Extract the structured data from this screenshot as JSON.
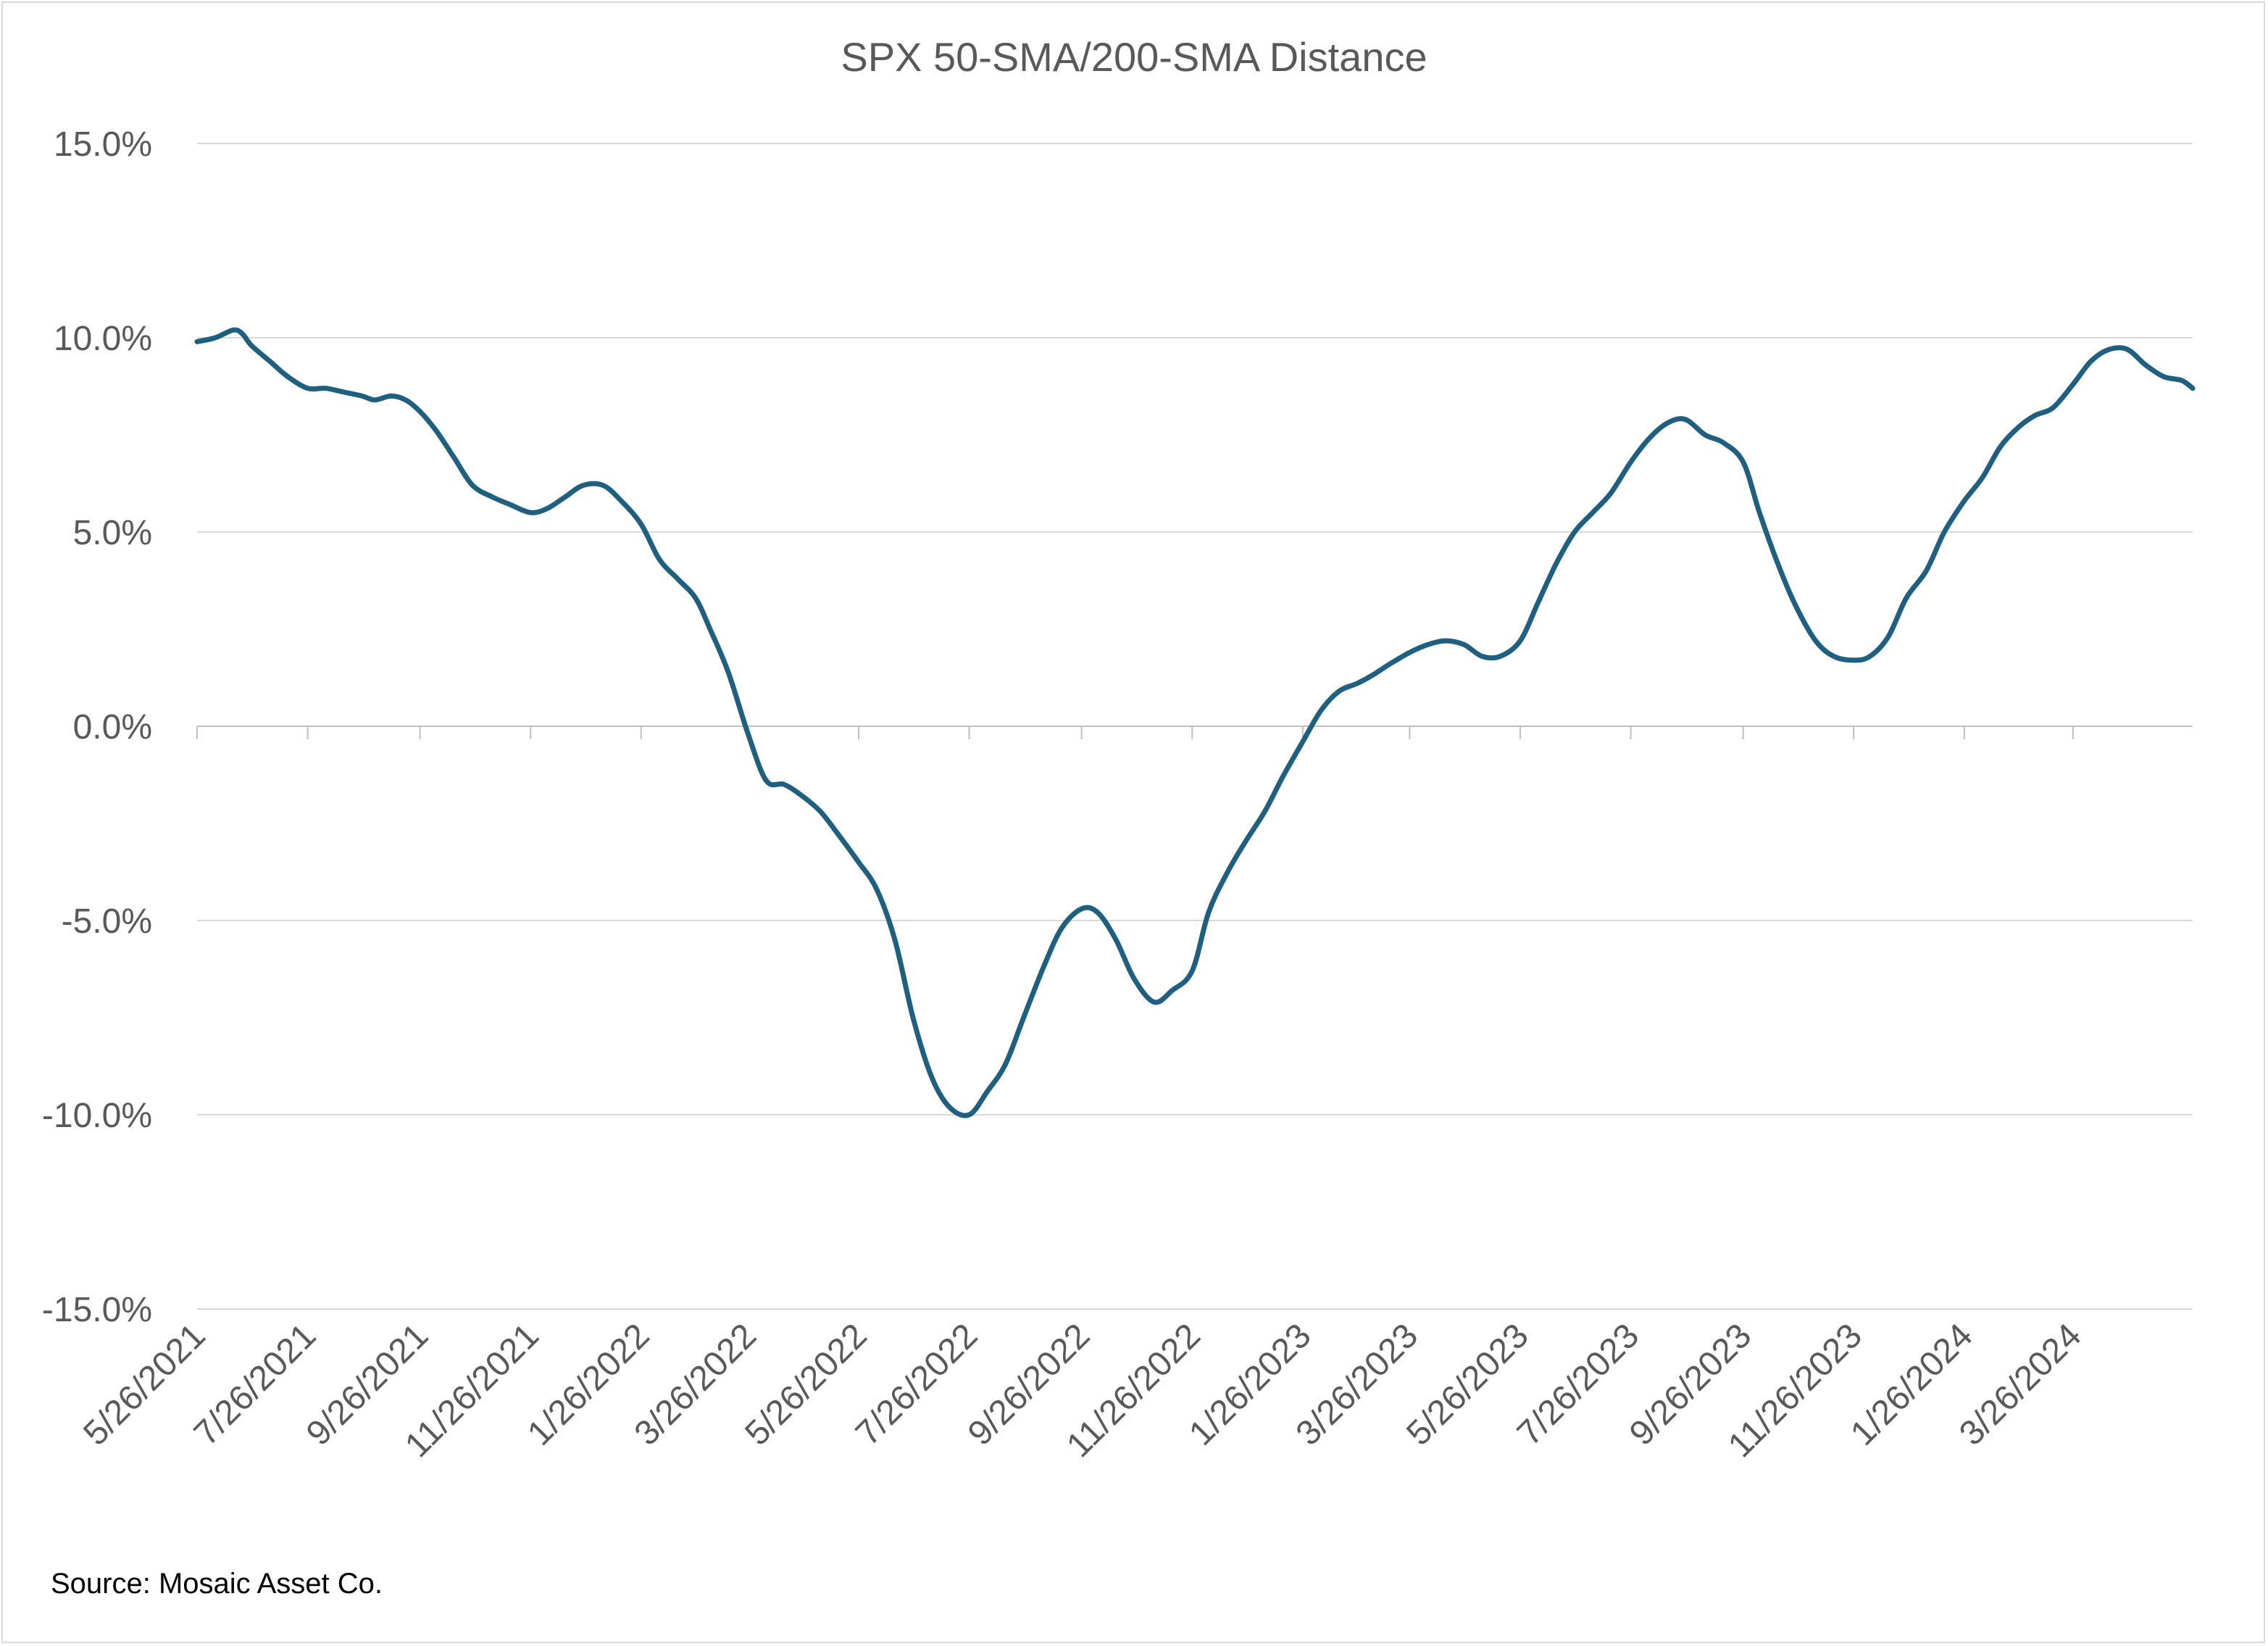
{
  "chart_data": {
    "type": "line",
    "title": "SPX 50-SMA/200-SMA Distance",
    "xlabel": "",
    "ylabel": "",
    "ylim": [
      -0.15,
      0.15
    ],
    "xlim": [
      "2021-05-26",
      "2024-05-31"
    ],
    "y_ticks": [
      0.15,
      0.1,
      0.05,
      0.0,
      -0.05,
      -0.1,
      -0.15
    ],
    "y_tick_labels": [
      "15.0%",
      "10.0%",
      "5.0%",
      "0.0%",
      "-5.0%",
      "-10.0%",
      "-15.0%"
    ],
    "x_tick_dates": [
      "2021-05-26",
      "2021-07-26",
      "2021-09-26",
      "2021-11-26",
      "2022-01-26",
      "2022-03-26",
      "2022-05-26",
      "2022-07-26",
      "2022-09-26",
      "2022-11-26",
      "2023-01-26",
      "2023-03-26",
      "2023-05-26",
      "2023-07-26",
      "2023-09-26",
      "2023-11-26",
      "2024-01-26",
      "2024-03-26"
    ],
    "x_tick_labels": [
      "5/26/2021",
      "7/26/2021",
      "9/26/2021",
      "11/26/2021",
      "1/26/2022",
      "3/26/2022",
      "5/26/2022",
      "7/26/2022",
      "9/26/2022",
      "11/26/2022",
      "1/26/2023",
      "3/26/2023",
      "5/26/2023",
      "7/26/2023",
      "9/26/2023",
      "11/26/2023",
      "1/26/2024",
      "3/26/2024"
    ],
    "grid": true,
    "legend": "none",
    "series_color": "#1f5f7f",
    "series": [
      {
        "x": [
          "2021-05-26",
          "2021-06-05",
          "2021-06-15",
          "2021-06-20",
          "2021-06-25",
          "2021-07-05",
          "2021-07-15",
          "2021-07-26",
          "2021-08-05",
          "2021-08-15",
          "2021-08-25",
          "2021-09-01",
          "2021-09-10",
          "2021-09-18",
          "2021-09-26",
          "2021-10-05",
          "2021-10-15",
          "2021-10-25",
          "2021-11-05",
          "2021-11-15",
          "2021-11-26",
          "2021-12-05",
          "2021-12-15",
          "2021-12-25",
          "2022-01-05",
          "2022-01-15",
          "2022-01-26",
          "2022-02-05",
          "2022-02-15",
          "2022-02-25",
          "2022-03-05",
          "2022-03-15",
          "2022-03-26",
          "2022-04-05",
          "2022-04-15",
          "2022-04-25",
          "2022-05-05",
          "2022-05-15",
          "2022-05-26",
          "2022-06-05",
          "2022-06-15",
          "2022-06-25",
          "2022-07-05",
          "2022-07-15",
          "2022-07-26",
          "2022-08-05",
          "2022-08-15",
          "2022-08-25",
          "2022-09-05",
          "2022-09-15",
          "2022-09-26",
          "2022-10-05",
          "2022-10-15",
          "2022-10-25",
          "2022-11-05",
          "2022-11-15",
          "2022-11-26",
          "2022-12-05",
          "2022-12-15",
          "2022-12-25",
          "2023-01-05",
          "2023-01-15",
          "2023-01-26",
          "2023-02-05",
          "2023-02-15",
          "2023-02-25",
          "2023-03-05",
          "2023-03-15",
          "2023-03-26",
          "2023-04-05",
          "2023-04-15",
          "2023-04-25",
          "2023-05-05",
          "2023-05-15",
          "2023-05-26",
          "2023-06-05",
          "2023-06-15",
          "2023-06-25",
          "2023-07-05",
          "2023-07-15",
          "2023-07-26",
          "2023-08-05",
          "2023-08-15",
          "2023-08-25",
          "2023-09-05",
          "2023-09-15",
          "2023-09-26",
          "2023-10-05",
          "2023-10-15",
          "2023-10-25",
          "2023-11-05",
          "2023-11-15",
          "2023-11-26",
          "2023-12-05",
          "2023-12-15",
          "2023-12-25",
          "2024-01-05",
          "2024-01-15",
          "2024-01-26",
          "2024-02-05",
          "2024-02-15",
          "2024-02-25",
          "2024-03-05",
          "2024-03-15",
          "2024-03-26",
          "2024-04-05",
          "2024-04-15",
          "2024-04-25",
          "2024-05-05",
          "2024-05-15",
          "2024-05-25",
          "2024-05-31"
        ],
        "y": [
          0.099,
          0.1,
          0.102,
          0.101,
          0.098,
          0.094,
          0.09,
          0.087,
          0.087,
          0.086,
          0.085,
          0.084,
          0.085,
          0.084,
          0.081,
          0.076,
          0.069,
          0.062,
          0.059,
          0.057,
          0.055,
          0.056,
          0.059,
          0.062,
          0.062,
          0.058,
          0.052,
          0.043,
          0.038,
          0.033,
          0.025,
          0.014,
          -0.002,
          -0.014,
          -0.015,
          -0.018,
          -0.022,
          -0.028,
          -0.035,
          -0.042,
          -0.055,
          -0.075,
          -0.09,
          -0.098,
          -0.1,
          -0.094,
          -0.087,
          -0.075,
          -0.062,
          -0.052,
          -0.047,
          -0.048,
          -0.055,
          -0.065,
          -0.071,
          -0.068,
          -0.063,
          -0.048,
          -0.038,
          -0.03,
          -0.022,
          -0.013,
          -0.004,
          0.004,
          0.009,
          0.011,
          0.013,
          0.016,
          0.019,
          0.021,
          0.022,
          0.021,
          0.018,
          0.018,
          0.022,
          0.032,
          0.042,
          0.05,
          0.055,
          0.06,
          0.068,
          0.074,
          0.078,
          0.079,
          0.075,
          0.073,
          0.068,
          0.055,
          0.042,
          0.031,
          0.022,
          0.018,
          0.017,
          0.018,
          0.023,
          0.033,
          0.04,
          0.05,
          0.058,
          0.064,
          0.072,
          0.077,
          0.08,
          0.082,
          0.088,
          0.094,
          0.097,
          0.097,
          0.093,
          0.09,
          0.089,
          0.087
        ]
      }
    ]
  },
  "footer": {
    "source": "Source: Mosaic Asset Co."
  }
}
